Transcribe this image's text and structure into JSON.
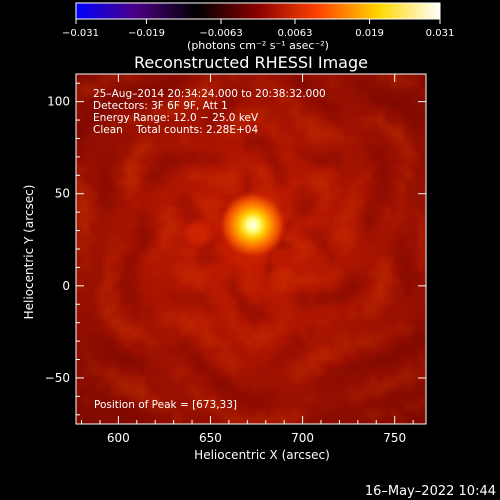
{
  "chart_data": {
    "type": "heatmap",
    "title": "Reconstructed RHESSI Image",
    "xlabel": "Heliocentric X (arcsec)",
    "ylabel": "Heliocentric Y (arcsec)",
    "xlim": [
      577,
      767
    ],
    "ylim": [
      -75,
      115
    ],
    "x_ticks": [
      600,
      650,
      700,
      750
    ],
    "x_tick_labels": [
      "600",
      "650",
      "700",
      "750"
    ],
    "y_ticks": [
      100,
      50,
      0,
      -50
    ],
    "y_tick_labels": [
      "100",
      "50",
      "0",
      "−50"
    ],
    "colorbar": {
      "range": [
        -0.031,
        0.031
      ],
      "ticks": [
        -0.031,
        -0.019,
        -0.0063,
        0.0063,
        0.019,
        0.031
      ],
      "tick_labels": [
        "−0.031",
        "−0.019",
        "−0.0063",
        "0.0063",
        "0.019",
        "0.031"
      ],
      "unit_label": "(photons cm⁻² s⁻¹ asec⁻²)",
      "colors": [
        "#0000ff",
        "#4b0082",
        "#000000",
        "#8b0000",
        "#ff4500",
        "#ffd700",
        "#ffffff"
      ]
    },
    "annotations": [
      "25–Aug–2014 20:34:24.000 to 20:38:32.000",
      "Detectors: 3F 6F 9F, Att 1",
      "Energy Range: 12.0 − 25.0 keV",
      "Clean    Total counts: 2.28E+04"
    ],
    "peak_label": "Position of Peak = [673,33]",
    "peak": {
      "x": 673,
      "y": 33
    },
    "grid": false,
    "timestamp": "16–May–2022 10:44"
  }
}
